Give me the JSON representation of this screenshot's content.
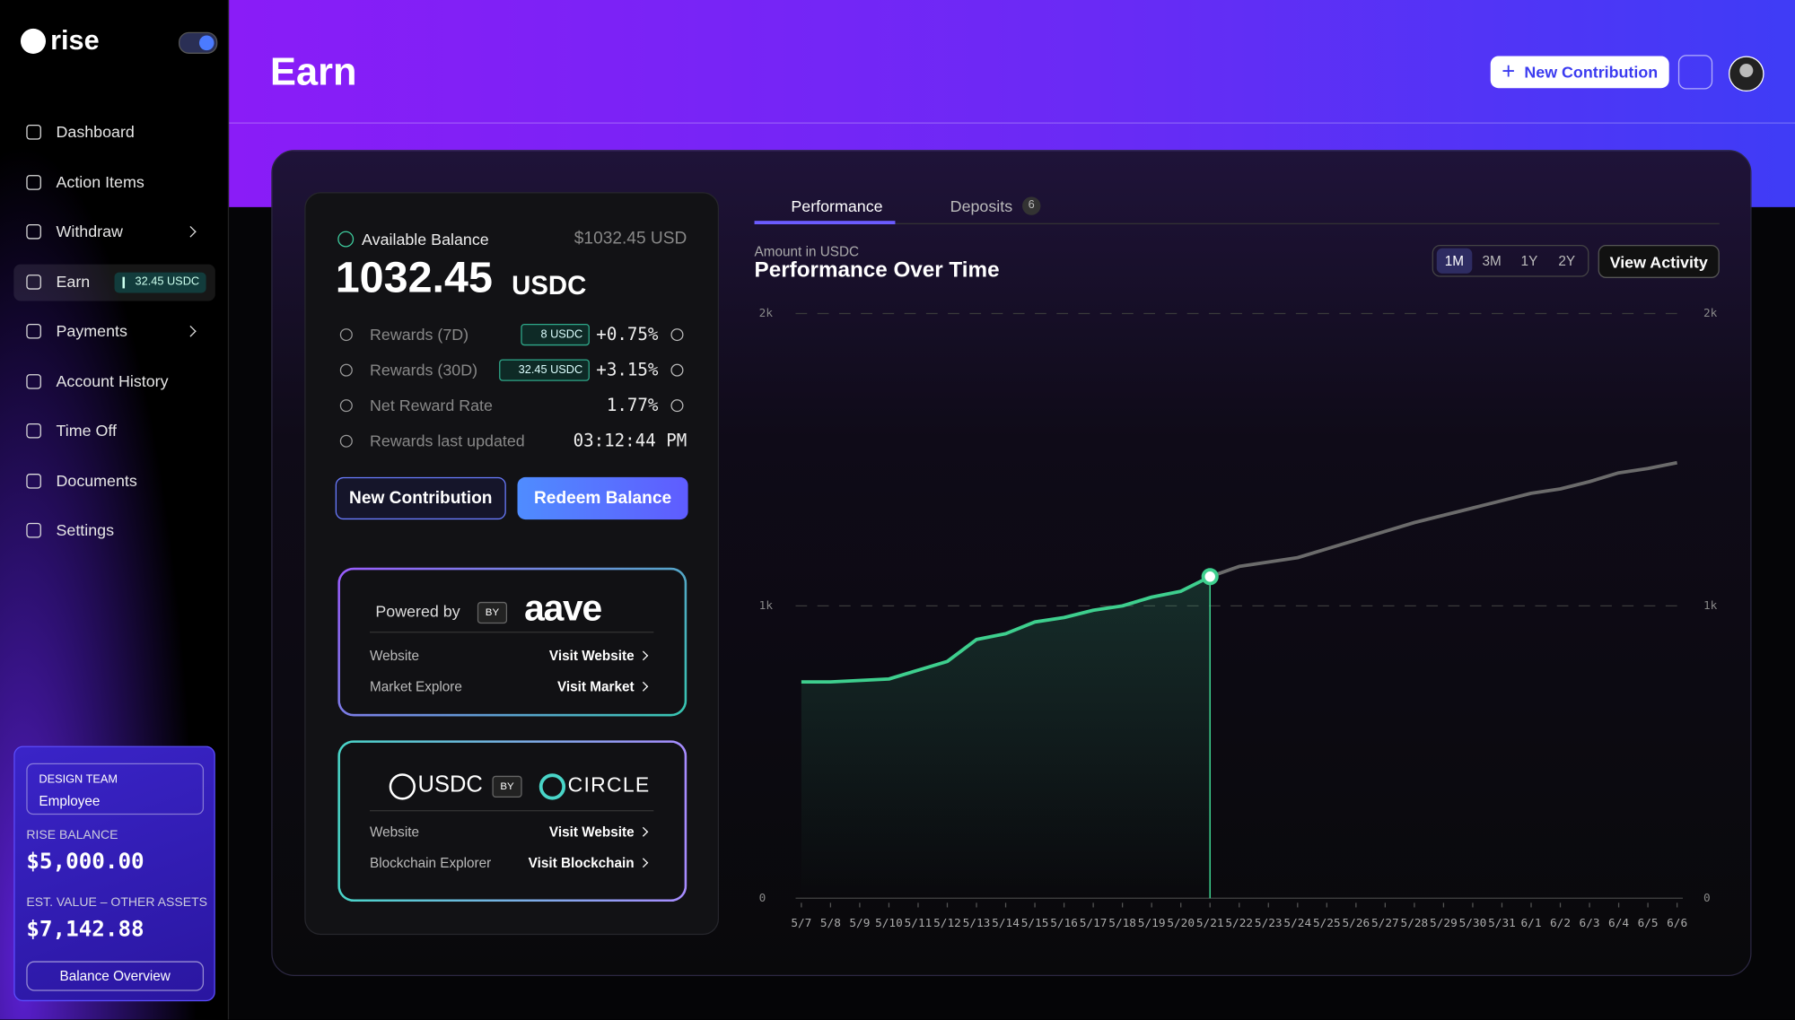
{
  "sidebar": {
    "brand": "rise",
    "nav": [
      {
        "label": "Dashboard"
      },
      {
        "label": "Action Items"
      },
      {
        "label": "Withdraw",
        "has_submenu": true
      },
      {
        "label": "Earn",
        "badge": "32.45 USDC",
        "active": true
      },
      {
        "label": "Payments",
        "has_submenu": true
      },
      {
        "label": "Account History"
      },
      {
        "label": "Time Off"
      },
      {
        "label": "Documents"
      },
      {
        "label": "Settings"
      }
    ],
    "team": "DESIGN TEAM",
    "role": "Employee",
    "balance_label": "RISE BALANCE",
    "balance": "$5,000.00",
    "other_label": "EST. VALUE – OTHER ASSETS",
    "other": "$7,142.88",
    "button": "Balance Overview"
  },
  "header": {
    "title": "Earn",
    "button": "New Contribution"
  },
  "balance": {
    "label": "Available Balance",
    "usd": "$1032.45 USD",
    "amount": "1032.45",
    "unit": "USDC",
    "rows": [
      {
        "label": "Rewards (7D)",
        "badge": "8 USDC",
        "value": "+0.75%"
      },
      {
        "label": "Rewards (30D)",
        "badge": "32.45 USDC",
        "value": "+3.15%"
      },
      {
        "label": "Net Reward Rate",
        "value": "1.77%"
      },
      {
        "label": "Rewards last updated",
        "value": "03:12:44 PM"
      }
    ],
    "buttons": [
      "New Contribution",
      "Redeem Balance"
    ]
  },
  "partners": [
    {
      "lead": "Powered by",
      "by": "BY",
      "name": "aave",
      "rows": [
        {
          "label": "Website",
          "link": "Visit Website"
        },
        {
          "label": "Market Explore",
          "link": "Visit Market"
        }
      ]
    },
    {
      "lead": "USDC",
      "by": "BY",
      "name": "CIRCLE",
      "rows": [
        {
          "label": "Website",
          "link": "Visit Website"
        },
        {
          "label": "Blockchain Explorer",
          "link": "Visit Blockchain"
        }
      ]
    }
  ],
  "tabs": [
    {
      "label": "Performance"
    },
    {
      "label": "Deposits",
      "count": 6
    }
  ],
  "ranges": [
    "1M",
    "3M",
    "1Y",
    "2Y"
  ],
  "view_button": "View Activity",
  "chart_data": {
    "type": "line",
    "subtitle": "Amount in USDC",
    "title": "Performance Over Time",
    "categories": [
      "5/7",
      "5/8",
      "5/9",
      "5/10",
      "5/11",
      "5/12",
      "5/13",
      "5/14",
      "5/15",
      "5/16",
      "5/17",
      "5/18",
      "5/19",
      "5/20",
      "5/21",
      "5/22",
      "5/23",
      "5/24",
      "5/25",
      "5/26",
      "5/27",
      "5/28",
      "5/29",
      "5/30",
      "5/31",
      "6/1",
      "6/2",
      "6/3",
      "6/4",
      "6/5",
      "6/6"
    ],
    "values": [
      740,
      740,
      745,
      750,
      780,
      810,
      885,
      905,
      945,
      960,
      985,
      1000,
      1030,
      1050,
      1100,
      1135,
      1150,
      1165,
      1195,
      1225,
      1255,
      1285,
      1310,
      1335,
      1360,
      1385,
      1400,
      1425,
      1455,
      1470,
      1490
    ],
    "color": "#3ecf8e",
    "future_color": "#6b6b6b",
    "cursor": "5/21",
    "ylim": [
      0,
      2000
    ],
    "yticks": [
      {
        "value": 0,
        "label": "0"
      },
      {
        "value": 1000,
        "label": "1k"
      },
      {
        "value": 2000,
        "label": "2k"
      }
    ],
    "grid": true
  }
}
